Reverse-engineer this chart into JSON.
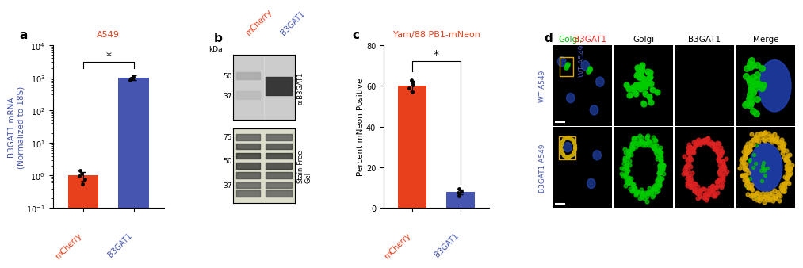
{
  "panel_a": {
    "label": "a",
    "title": "A549",
    "title_color": "#E8401C",
    "categories": [
      "mCherry",
      "B3GAT1"
    ],
    "bar_values": [
      1.0,
      1000.0
    ],
    "bar_colors": [
      "#E8401C",
      "#4555B0"
    ],
    "error_values": [
      0.3,
      150.0
    ],
    "dot_values_mcherry": [
      0.55,
      0.75,
      0.95,
      1.15,
      1.4
    ],
    "dot_values_b3gat1": [
      850.0,
      920.0,
      1020.0,
      1080.0
    ],
    "ylabel": "B3GAT1 mRNA\n(Normalized to 18S)",
    "ylabel_color": "#4555B0"
  },
  "panel_b": {
    "label": "b",
    "col_labels": [
      "mCherry",
      "B3GAT1"
    ],
    "col_label_colors": [
      "#E8401C",
      "#4555B0"
    ],
    "kda_label": "kDa",
    "kda_top": [
      "50",
      "37"
    ],
    "kda_bottom": [
      "75",
      "50",
      "37"
    ],
    "side_top": "α-B3GAT1",
    "side_bottom": "Stain-Free\nGel"
  },
  "panel_c": {
    "label": "c",
    "title": "Yam/88 PB1-mNeon",
    "title_color": "#E8401C",
    "categories": [
      "mCherry",
      "B3GAT1"
    ],
    "bar_values": [
      60.0,
      8.0
    ],
    "bar_colors": [
      "#E8401C",
      "#4555B0"
    ],
    "error_values": [
      2.5,
      1.2
    ],
    "dot_values_mcherry": [
      57.0,
      59.0,
      60.5,
      61.5,
      63.0
    ],
    "dot_values_b3gat1": [
      6.0,
      7.5,
      8.5,
      9.5
    ],
    "ylabel": "Percent mNeon Positive",
    "yticks": [
      0,
      20,
      40,
      60,
      80
    ],
    "ylim": [
      0,
      80
    ]
  },
  "panel_d": {
    "label": "d",
    "col_headers": [
      "Golgi, B3GAT1",
      "Golgi",
      "B3GAT1",
      "Merge"
    ],
    "col_header_colors": [
      [
        "#00CC00",
        "#FF3333"
      ],
      [
        "black"
      ],
      [
        "black"
      ],
      [
        "black"
      ]
    ],
    "row_labels": [
      "WT A549",
      "B3GAT1 A549"
    ],
    "row_label_color": "#4555B0"
  },
  "figure_bg": "#FFFFFF",
  "panel_label_fontsize": 11,
  "tick_fontsize": 7,
  "axis_label_fontsize": 7.5,
  "title_fontsize": 8
}
